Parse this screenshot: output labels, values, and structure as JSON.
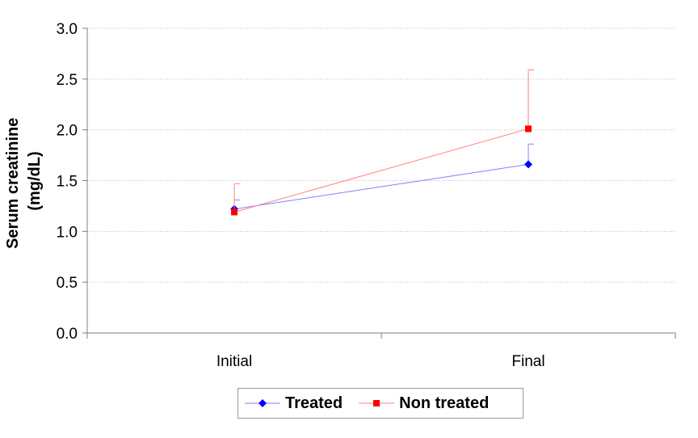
{
  "chart_data": {
    "type": "line",
    "categories": [
      "Initial",
      "Final"
    ],
    "ylabel_lines": [
      "Serum creatinine",
      "(mg/dL)"
    ],
    "ylim": [
      0,
      3.0
    ],
    "yticks": [
      "0.0",
      "0.5",
      "1.0",
      "1.5",
      "2.0",
      "2.5",
      "3.0"
    ],
    "ytick_values": [
      0,
      0.5,
      1.0,
      1.5,
      2.0,
      2.5,
      3.0
    ],
    "grid": true,
    "legend_position": "bottom",
    "series": [
      {
        "name": "Treated",
        "marker": "diamond",
        "color": "#0000ff",
        "line_color": "#8080ff",
        "values": [
          1.22,
          1.66
        ],
        "error_upper": [
          1.31,
          1.86
        ]
      },
      {
        "name": "Non treated",
        "marker": "square",
        "color": "#ff0000",
        "line_color": "#ff8080",
        "values": [
          1.19,
          2.01
        ],
        "error_upper": [
          1.47,
          2.59
        ]
      }
    ]
  }
}
